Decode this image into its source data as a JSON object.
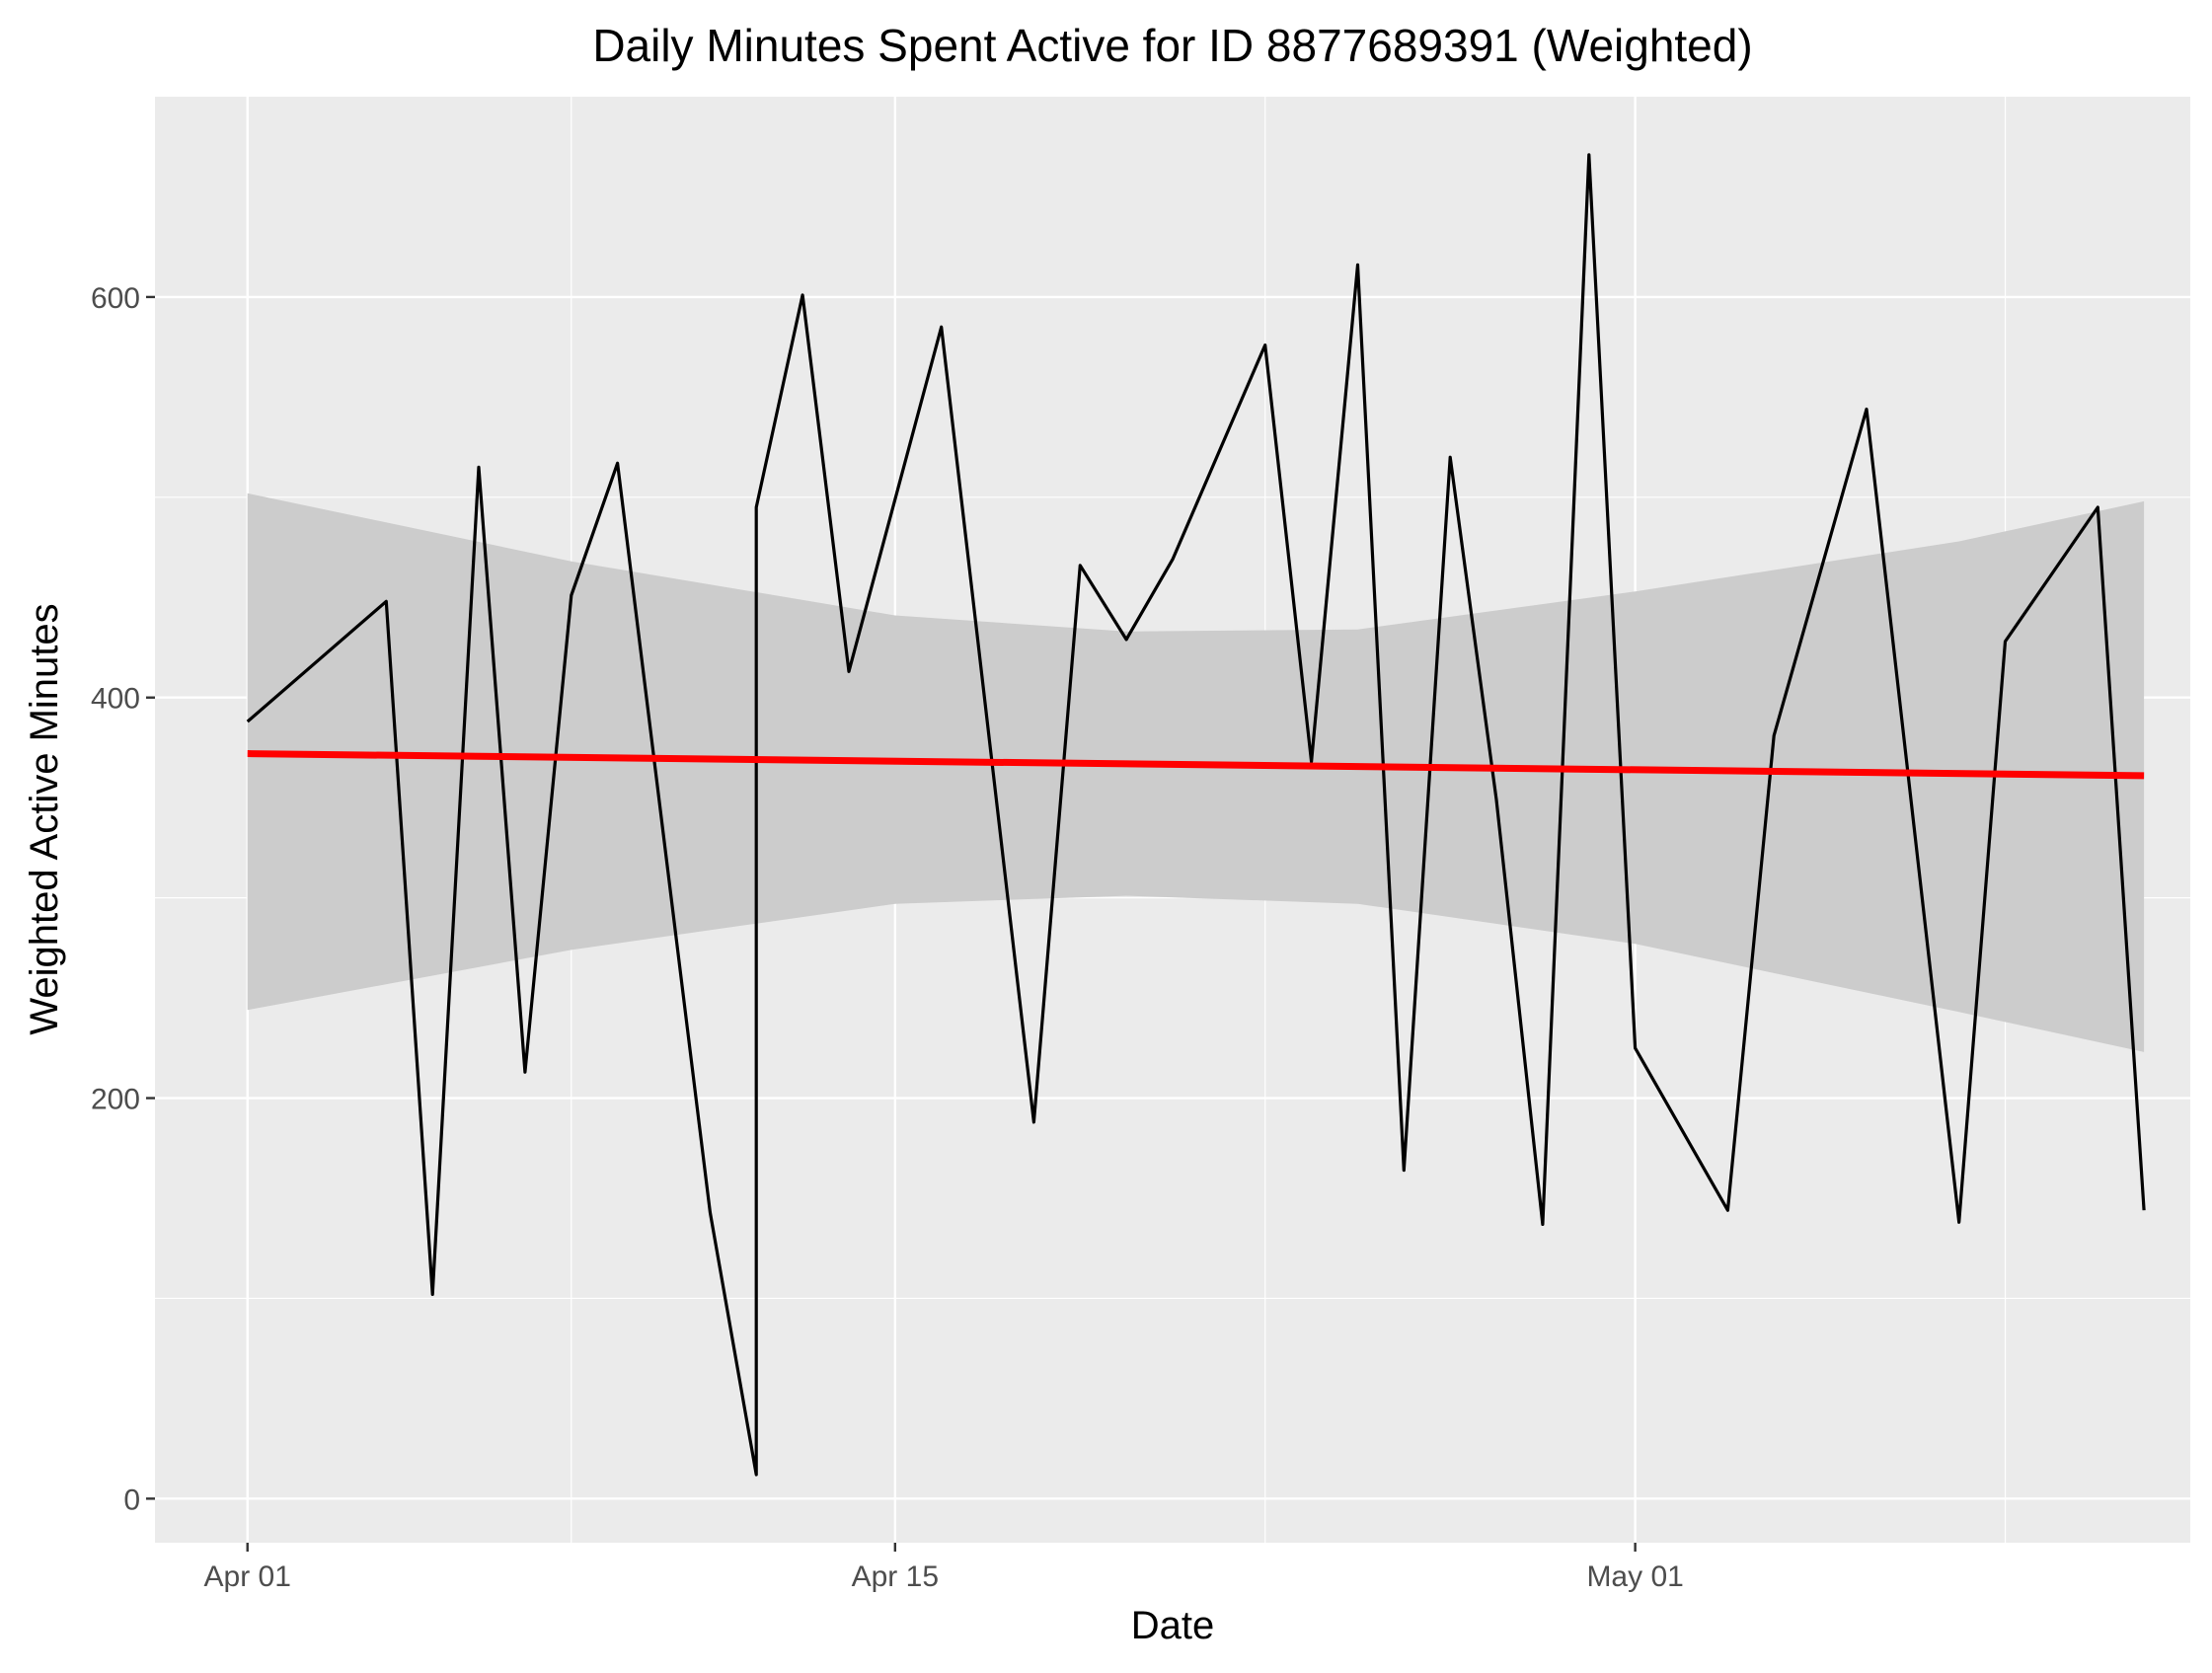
{
  "chart_data": {
    "type": "line",
    "title": "Daily Minutes Spent Active for ID 8877689391 (Weighted)",
    "xlabel": "Date",
    "ylabel": "Weighted Active Minutes",
    "x_tick_labels": [
      "Apr 01",
      "Apr 15",
      "May 01"
    ],
    "x_ticks": [
      "2016-04-01",
      "2016-04-15",
      "2016-05-01"
    ],
    "y_ticks": [
      0,
      200,
      400,
      600
    ],
    "xlim": [
      "2016-03-30",
      "2016-05-13"
    ],
    "ylim": [
      -22,
      700
    ],
    "grid": true,
    "legend": "none",
    "colors": {
      "panel": "#ebebeb",
      "grid": "#ffffff",
      "line": "#000000",
      "trend": "#ff0000",
      "band": "#cccccc"
    },
    "series": [
      {
        "type": "line",
        "x": [
          "2016-04-01",
          "2016-04-04",
          "2016-04-05",
          "2016-04-06",
          "2016-04-07",
          "2016-04-08",
          "2016-04-09",
          "2016-04-11",
          "2016-04-12",
          "2016-04-12",
          "2016-04-13",
          "2016-04-14",
          "2016-04-16",
          "2016-04-18",
          "2016-04-19",
          "2016-04-20",
          "2016-04-21",
          "2016-04-23",
          "2016-04-24",
          "2016-04-25",
          "2016-04-26",
          "2016-04-27",
          "2016-04-28",
          "2016-04-29",
          "2016-04-30",
          "2016-05-01",
          "2016-05-03",
          "2016-05-04",
          "2016-05-06",
          "2016-05-08",
          "2016-05-09",
          "2016-05-11",
          "2016-05-12"
        ],
        "y": [
          388,
          448,
          102,
          515,
          213,
          451,
          517,
          143,
          12,
          495,
          601,
          413,
          585,
          188,
          466,
          429,
          469,
          576,
          368,
          616,
          164,
          520,
          349,
          137,
          671,
          225,
          144,
          381,
          544,
          138,
          428,
          495,
          144
        ]
      }
    ],
    "trend": {
      "type": "linear",
      "x": [
        "2016-04-01",
        "2016-05-12"
      ],
      "y": [
        372,
        361
      ]
    },
    "confidence_band": {
      "x": [
        "2016-04-01",
        "2016-04-08",
        "2016-04-15",
        "2016-04-20",
        "2016-04-25",
        "2016-05-01",
        "2016-05-08",
        "2016-05-12"
      ],
      "upper": [
        502,
        468,
        441,
        433,
        434,
        453,
        478,
        498
      ],
      "lower": [
        244,
        274,
        297,
        301,
        297,
        277,
        243,
        223
      ]
    }
  }
}
